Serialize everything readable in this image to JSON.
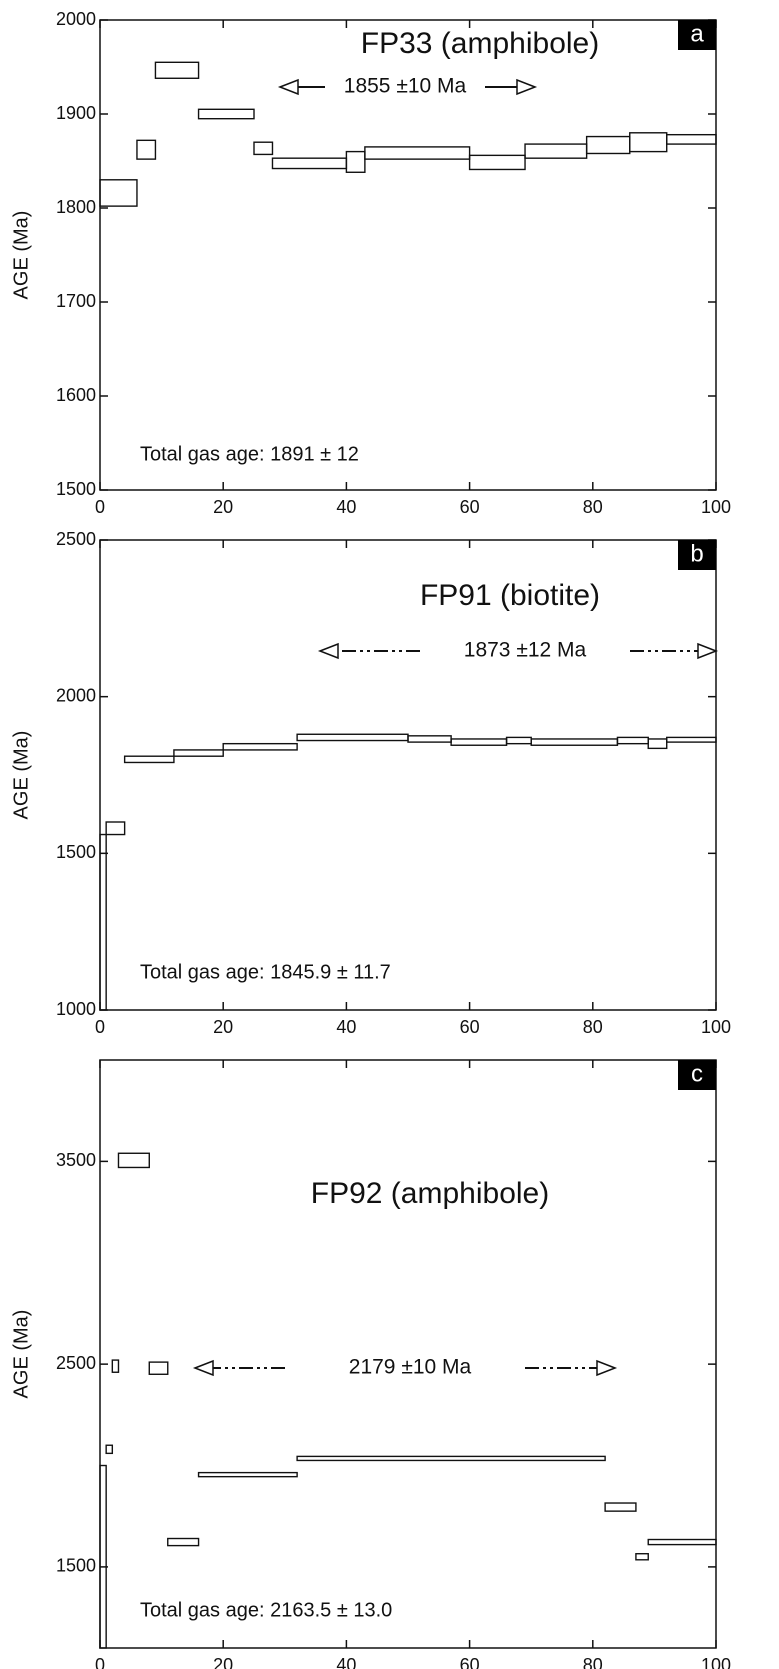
{
  "chart_data": [
    {
      "type": "step",
      "title": "FP33 (amphibole)",
      "panel_label": "a",
      "annotation": "1855 ±10 Ma",
      "note": "Total gas age: 1891 ± 12",
      "y_label": "AGE (Ma)",
      "bins": [
        0,
        6,
        9,
        16,
        25,
        28,
        40,
        43,
        60,
        69,
        79,
        86,
        92,
        100
      ],
      "low": [
        1802,
        1852,
        1938,
        1895,
        1857,
        1842,
        1838,
        1852,
        1841,
        1853,
        1858,
        1860,
        1868
      ],
      "high": [
        1830,
        1872,
        1955,
        1905,
        1870,
        1853,
        1860,
        1865,
        1856,
        1868,
        1876,
        1880,
        1878
      ],
      "xlim": [
        0,
        100
      ],
      "ylim": [
        1500,
        2000
      ],
      "xticks": [
        0,
        20,
        40,
        60,
        80,
        100
      ],
      "yticks": [
        1500,
        1600,
        1700,
        1800,
        1900,
        2000
      ]
    },
    {
      "type": "step",
      "title": "FP91 (biotite)",
      "panel_label": "b",
      "annotation": "1873 ±12 Ma",
      "note": "Total gas age: 1845.9 ± 11.7",
      "y_label": "AGE (Ma)",
      "bins": [
        0,
        1,
        4,
        12,
        20,
        32,
        50,
        57,
        66,
        70,
        84,
        89,
        92,
        100
      ],
      "low": [
        1000,
        1560,
        1790,
        1810,
        1830,
        1860,
        1855,
        1845,
        1850,
        1845,
        1850,
        1835,
        1855
      ],
      "high": [
        1560,
        1600,
        1810,
        1830,
        1850,
        1880,
        1875,
        1865,
        1870,
        1865,
        1870,
        1865,
        1870
      ],
      "xlim": [
        0,
        100
      ],
      "ylim": [
        1000,
        2500
      ],
      "xticks": [
        0,
        20,
        40,
        60,
        80,
        100
      ],
      "yticks": [
        1000,
        1500,
        2000,
        2500
      ]
    },
    {
      "type": "step",
      "title": "FP92 (amphibole)",
      "panel_label": "c",
      "annotation": "2179 ±10 Ma",
      "note": "Total gas age: 2163.5 ± 13.0",
      "y_label": "AGE (Ma)",
      "bins": [
        0,
        1,
        2,
        3,
        8,
        11,
        16,
        32,
        82,
        87,
        89,
        100
      ],
      "low": [
        1100,
        2060,
        2460,
        3470,
        2450,
        1605,
        1945,
        2025,
        1775,
        1535,
        1610
      ],
      "high": [
        2000,
        2100,
        2520,
        3540,
        2510,
        1640,
        1965,
        2045,
        1815,
        1565,
        1635
      ],
      "xlim": [
        0,
        100
      ],
      "ylim": [
        1100,
        4000
      ],
      "xticks": [
        0,
        20,
        40,
        60,
        80,
        100
      ],
      "yticks": [
        1500,
        2500,
        3500
      ]
    }
  ]
}
